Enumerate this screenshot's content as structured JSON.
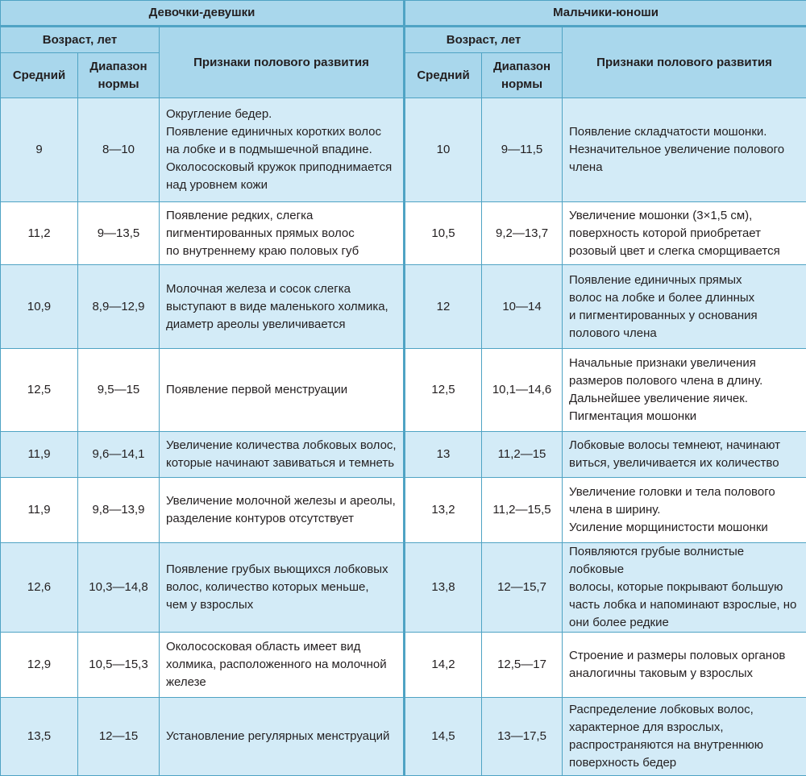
{
  "headers": {
    "girls": "Девочки-девушки",
    "boys": "Мальчики-юноши",
    "age": "Возраст, лет",
    "avg": "Средний",
    "range": "Диапазон нормы",
    "signs": "Признаки полового развития"
  },
  "rows": [
    {
      "g_avg": "9",
      "g_range": "8—10",
      "g_signs": "Округление бедер.\nПоявление единичных коротких волос\nна лобке и в подмышечной впадине.\nОколососковый кружок приподнимается\nнад уровнем кожи",
      "b_avg": "10",
      "b_range": "9—11,5",
      "b_signs": "Появление складчатости мошонки.\nНезначительное увеличение полового\nчлена"
    },
    {
      "g_avg": "11,2",
      "g_range": "9—13,5",
      "g_signs": "Появление редких, слегка\nпигментированных прямых волос\nпо внутреннему краю половых губ",
      "b_avg": "10,5",
      "b_range": "9,2—13,7",
      "b_signs": "Увеличение мошонки (3×1,5 см),\nповерхность которой приобретает\nрозовый цвет и слегка сморщивается"
    },
    {
      "g_avg": "10,9",
      "g_range": "8,9—12,9",
      "g_signs": "Молочная железа и сосок слегка\nвыступают в виде маленького холмика,\nдиаметр ареолы увеличивается",
      "b_avg": "12",
      "b_range": "10—14",
      "b_signs": "Появление единичных прямых\nволос на лобке и более длинных\nи пигментированных у основания\nполового члена"
    },
    {
      "g_avg": "12,5",
      "g_range": "9,5—15",
      "g_signs": "Появление первой менструации",
      "b_avg": "12,5",
      "b_range": "10,1—14,6",
      "b_signs": "Начальные признаки увеличения\nразмеров полового члена в длину.\nДальнейшее увеличение яичек.\nПигментация мошонки"
    },
    {
      "g_avg": "11,9",
      "g_range": "9,6—14,1",
      "g_signs": "Увеличение количества лобковых волос,\nкоторые начинают завиваться и темнеть",
      "b_avg": "13",
      "b_range": "11,2—15",
      "b_signs": "Лобковые волосы темнеют, начинают\nвиться, увеличивается их количество"
    },
    {
      "g_avg": "11,9",
      "g_range": "9,8—13,9",
      "g_signs": "Увеличение молочной железы и ареолы,\nразделение контуров отсутствует",
      "b_avg": "13,2",
      "b_range": "11,2—15,5",
      "b_signs": "Увеличение головки и тела полового\nчлена в ширину.\nУсиление морщинистости мошонки"
    },
    {
      "g_avg": "12,6",
      "g_range": "10,3—14,8",
      "g_signs": "Появление грубых вьющихся лобковых\nволос, количество которых меньше,\nчем у взрослых",
      "b_avg": "13,8",
      "b_range": "12—15,7",
      "b_signs": "Появляются грубые волнистые лобковые\nволосы, которые покрывают большую\nчасть лобка и напоминают взрослые, но\nони более редкие"
    },
    {
      "g_avg": "12,9",
      "g_range": "10,5—15,3",
      "g_signs": "Околососковая область имеет вид\nхолмика, расположенного на молочной\nжелезе",
      "b_avg": "14,2",
      "b_range": "12,5—17",
      "b_signs": "Строение и размеры половых органов\nаналогичны таковым у взрослых"
    },
    {
      "g_avg": "13,5",
      "g_range": "12—15",
      "g_signs": "Установление регулярных менструаций",
      "b_avg": "14,5",
      "b_range": "13—17,5",
      "b_signs": "Распределение лобковых волос,\nхарактерное для взрослых,\nраспространяются на внутреннюю\nповерхность бедер"
    }
  ]
}
